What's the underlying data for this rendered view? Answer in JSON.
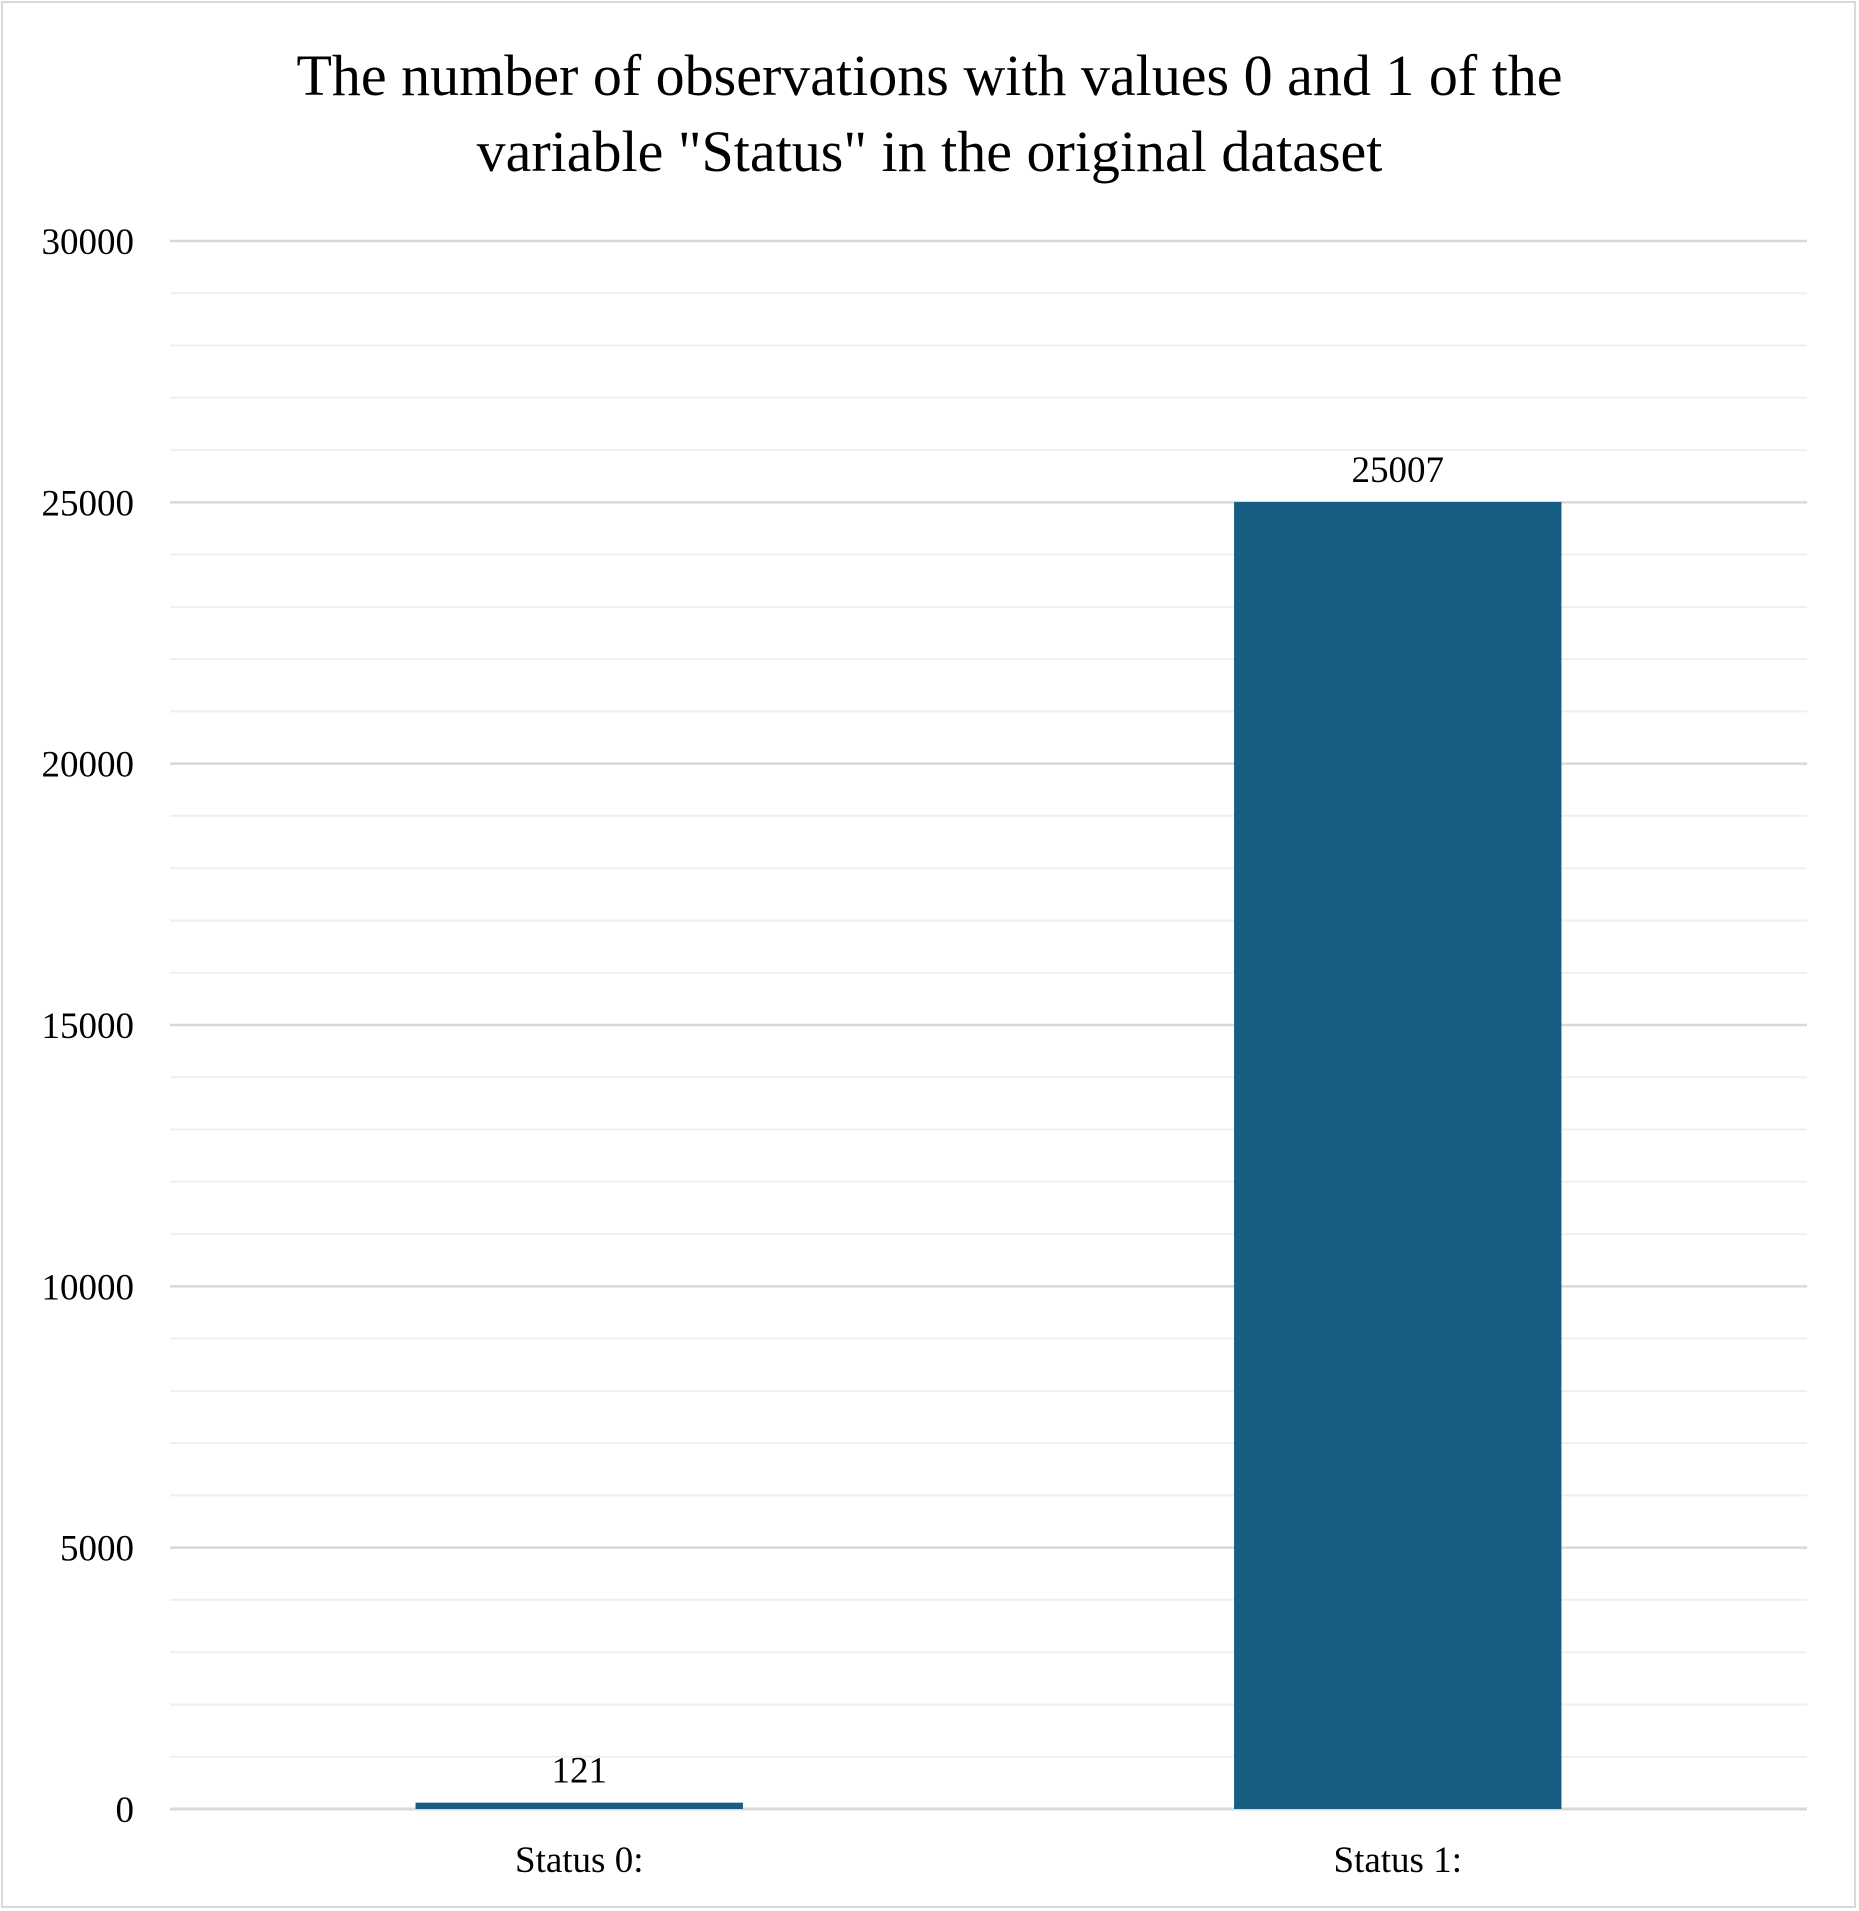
{
  "chart_data": {
    "type": "bar",
    "title_lines": [
      "The number of observations with values 0 and 1 of the",
      "variable \"Status\" in the original dataset"
    ],
    "categories": [
      "Status 0:",
      "Status 1:"
    ],
    "values": [
      121,
      25007
    ],
    "data_labels": [
      "121",
      "25007"
    ],
    "ylim": [
      0,
      30000
    ],
    "major_ticks": [
      0,
      5000,
      10000,
      15000,
      20000,
      25000,
      30000
    ],
    "tick_labels": [
      "0",
      "5000",
      "10000",
      "15000",
      "20000",
      "25000",
      "30000"
    ],
    "minor_tick_step": 1000,
    "grid": true,
    "legend": "none",
    "colors": {
      "bar": "#175f82",
      "major_grid": "#d9d9d9",
      "minor_grid": "#efefef",
      "axis": "#d9d9d9"
    }
  }
}
